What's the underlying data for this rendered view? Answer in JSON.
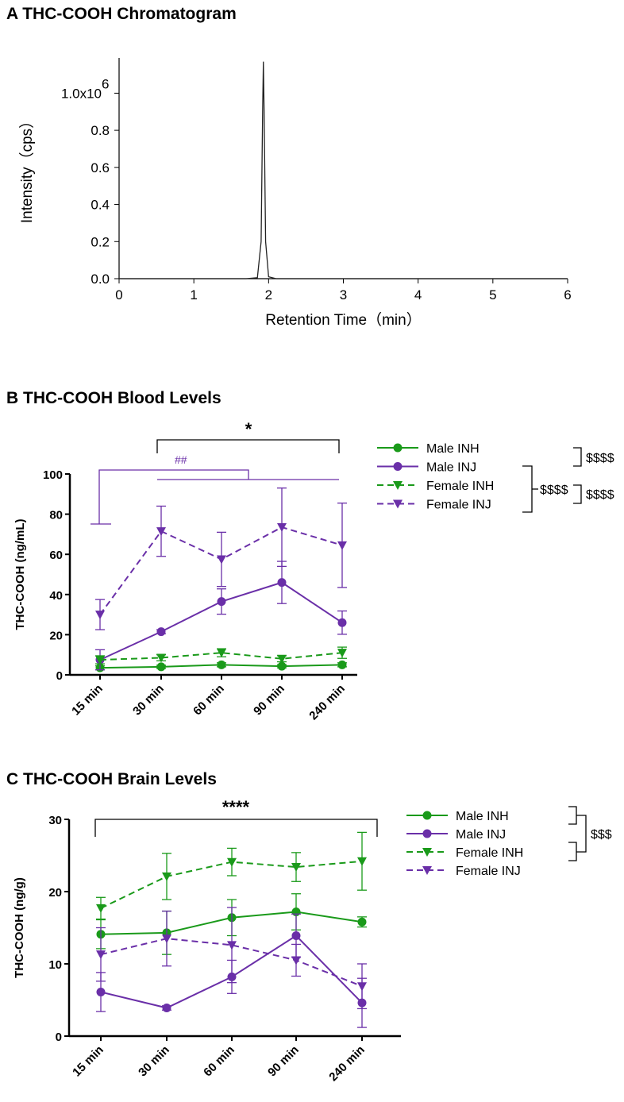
{
  "colors": {
    "green": "#1a9a1a",
    "purple": "#6a2fa8",
    "black": "#000000",
    "trace": "#222222"
  },
  "chart_data": [
    {
      "panel": "A",
      "title": "THC-COOH Chromatogram",
      "type": "line",
      "xlabel": "Retention Time（min）",
      "ylabel": "Intensity（cps）",
      "xlim": [
        0,
        6
      ],
      "ylim": [
        0,
        1.19
      ],
      "xticks": [
        "0",
        "1",
        "2",
        "3",
        "4",
        "5",
        "6"
      ],
      "yticks": [
        "0.0",
        "0.2",
        "0.4",
        "0.6",
        "0.8",
        "1.0x10"
      ],
      "y_exponent": "6",
      "series": [
        {
          "x": [
            0,
            1.7,
            1.85,
            1.9,
            1.92,
            1.93,
            1.94,
            1.96,
            2.0,
            2.1,
            6
          ],
          "y": [
            0,
            0,
            0.005,
            0.2,
            0.9,
            1.17,
            0.9,
            0.2,
            0.01,
            0,
            0
          ]
        }
      ]
    },
    {
      "panel": "B",
      "title": "THC-COOH Blood Levels",
      "type": "line",
      "ylabel": "THC-COOH (ng/mL)",
      "categories": [
        "15 min",
        "30 min",
        "60 min",
        "90 min",
        "240 min"
      ],
      "ylim": [
        0,
        100
      ],
      "yticks": [
        "0",
        "20",
        "40",
        "60",
        "80",
        "100"
      ],
      "series": [
        {
          "name": "Male INH",
          "color": "green",
          "dash": false,
          "marker": "circle",
          "values": [
            3.5,
            4,
            5,
            4.3,
            5
          ],
          "err": [
            1,
            0.8,
            1,
            0.8,
            1
          ]
        },
        {
          "name": "Male INJ",
          "color": "purple",
          "dash": false,
          "marker": "circle",
          "values": [
            7.5,
            21.5,
            36.5,
            46,
            26
          ],
          "err": [
            5,
            1,
            6.3,
            10.5,
            5.8
          ]
        },
        {
          "name": "Female INH",
          "color": "green",
          "dash": true,
          "marker": "triangle",
          "values": [
            7.5,
            8.5,
            11,
            8,
            11
          ],
          "err": [
            2,
            1.5,
            2,
            1.5,
            2.8
          ]
        },
        {
          "name": "Female INJ",
          "color": "purple",
          "dash": true,
          "marker": "triangle",
          "values": [
            30,
            71.5,
            57.5,
            73.5,
            64.5
          ],
          "err": [
            7.5,
            12.5,
            13.5,
            19.5,
            21
          ]
        }
      ],
      "annotations": {
        "star": "*",
        "hash": "##",
        "legend_sig": [
          "$$$$",
          "$$$$",
          "$$$$"
        ]
      }
    },
    {
      "panel": "C",
      "title": "THC-COOH Brain Levels",
      "type": "line",
      "ylabel": "THC-COOH (ng/g)",
      "categories": [
        "15 min",
        "30 min",
        "60 min",
        "90 min",
        "240 min"
      ],
      "ylim": [
        0,
        30
      ],
      "yticks": [
        "0",
        "10",
        "20",
        "30"
      ],
      "series": [
        {
          "name": "Male INH",
          "color": "green",
          "dash": false,
          "marker": "circle",
          "values": [
            14.1,
            14.3,
            16.4,
            17.2,
            15.8
          ],
          "err": [
            2,
            3,
            2.5,
            2.5,
            0.7
          ]
        },
        {
          "name": "Male INJ",
          "color": "purple",
          "dash": false,
          "marker": "circle",
          "values": [
            6.1,
            3.9,
            8.2,
            13.9,
            4.6
          ],
          "err": [
            2.7,
            0.3,
            2.3,
            3,
            3.4
          ]
        },
        {
          "name": "Female INH",
          "color": "green",
          "dash": true,
          "marker": "triangle",
          "values": [
            17.7,
            22.1,
            24.1,
            23.4,
            24.2
          ],
          "err": [
            1.5,
            3.2,
            1.9,
            2,
            4
          ]
        },
        {
          "name": "Female INJ",
          "color": "purple",
          "dash": true,
          "marker": "triangle",
          "values": [
            11.3,
            13.5,
            12.6,
            10.5,
            6.9
          ],
          "err": [
            3.7,
            3.8,
            5.2,
            2.2,
            3.1
          ]
        }
      ],
      "annotations": {
        "star": "****",
        "legend_sig": [
          "$$$"
        ]
      }
    }
  ]
}
